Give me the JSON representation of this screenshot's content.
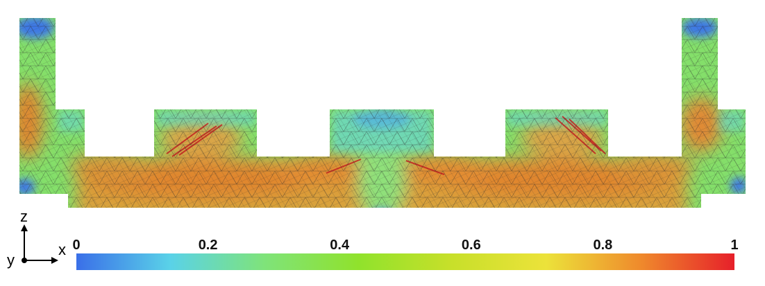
{
  "axes": {
    "vertical": "z",
    "horizontal": "x",
    "out_of_plane": "y"
  },
  "colorbar": {
    "ticks": [
      "0",
      "0.2",
      "0.4",
      "0.6",
      "0.8",
      "1"
    ],
    "tick_values": [
      0,
      0.2,
      0.4,
      0.6,
      0.8,
      1
    ],
    "min": 0,
    "max": 1,
    "colormap": [
      "#3a6fe8",
      "#5ad2e8",
      "#7fe37a",
      "#90e22c",
      "#c8e02a",
      "#ece23a",
      "#ef8a2c",
      "#e6202a"
    ]
  },
  "palette": {
    "low": "#3a6fe8",
    "cyan": "#5ad2e8",
    "green": "#7fe37a",
    "yellow": "#e9e23c",
    "orange": "#e58a3a",
    "red": "#d83028",
    "mesh": "#2b2b2b"
  }
}
